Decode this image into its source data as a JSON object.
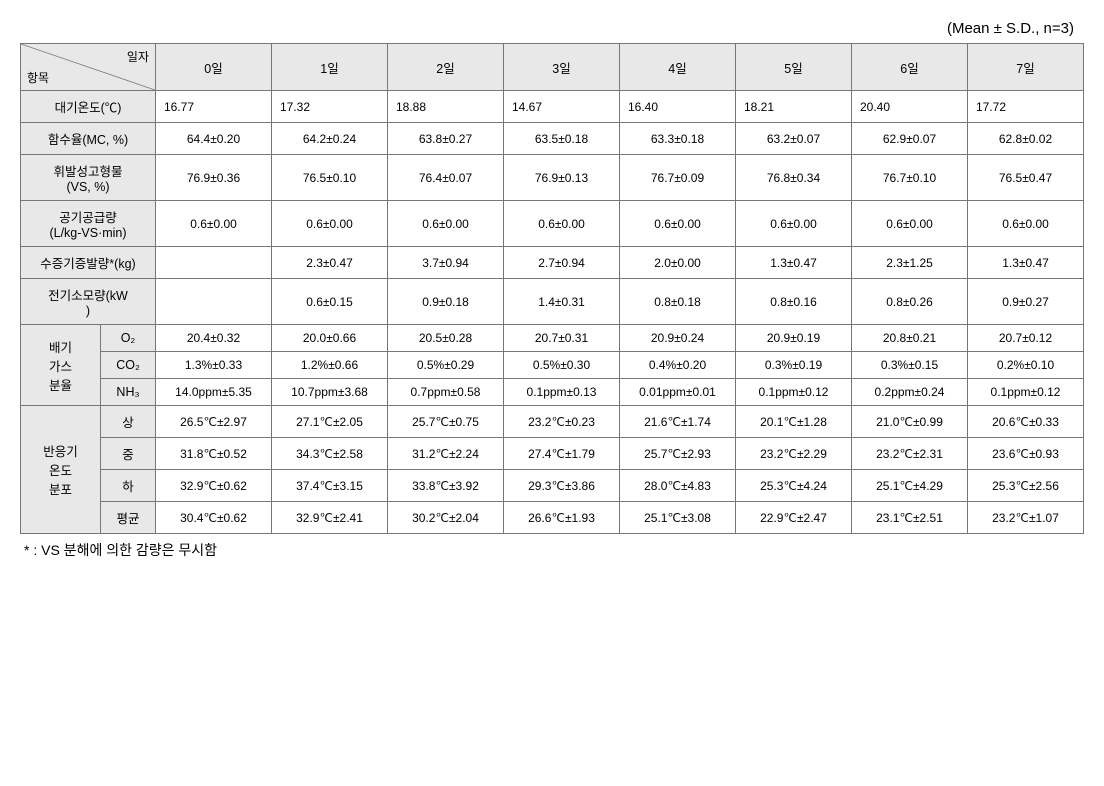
{
  "caption": "(Mean ± S.D., n=3)",
  "header": {
    "diag_top": "일자",
    "diag_bottom": "항목",
    "days": [
      "0일",
      "1일",
      "2일",
      "3일",
      "4일",
      "5일",
      "6일",
      "7일"
    ]
  },
  "rows_simple": [
    {
      "label": "대기온도(℃)",
      "vals": [
        "16.77",
        "17.32",
        "18.88",
        "14.67",
        "16.40",
        "18.21",
        "20.40",
        "17.72"
      ],
      "left": true
    },
    {
      "label": "함수율(MC, %)",
      "vals": [
        "64.4±0.20",
        "64.2±0.24",
        "63.8±0.27",
        "63.5±0.18",
        "63.3±0.18",
        "63.2±0.07",
        "62.9±0.07",
        "62.8±0.02"
      ]
    },
    {
      "label": "휘발성고형물\n(VS, %)",
      "vals": [
        "76.9±0.36",
        "76.5±0.10",
        "76.4±0.07",
        "76.9±0.13",
        "76.7±0.09",
        "76.8±0.34",
        "76.7±0.10",
        "76.5±0.47"
      ]
    },
    {
      "label": "공기공급량\n(L/kg-VS·min)",
      "vals": [
        "0.6±0.00",
        "0.6±0.00",
        "0.6±0.00",
        "0.6±0.00",
        "0.6±0.00",
        "0.6±0.00",
        "0.6±0.00",
        "0.6±0.00"
      ]
    },
    {
      "label": "수증기증발량*(kg)",
      "vals": [
        "",
        "2.3±0.47",
        "3.7±0.94",
        "2.7±0.94",
        "2.0±0.00",
        "1.3±0.47",
        "2.3±1.25",
        "1.3±0.47"
      ]
    },
    {
      "label": "전기소모량(kW\n)",
      "vals": [
        "",
        "0.6±0.15",
        "0.9±0.18",
        "1.4±0.31",
        "0.8±0.18",
        "0.8±0.16",
        "0.8±0.26",
        "0.9±0.27"
      ]
    }
  ],
  "group_gas": {
    "label": "배기\n가스\n분율",
    "rows": [
      {
        "sub": "O₂",
        "vals": [
          "20.4±0.32",
          "20.0±0.66",
          "20.5±0.28",
          "20.7±0.31",
          "20.9±0.24",
          "20.9±0.19",
          "20.8±0.21",
          "20.7±0.12"
        ]
      },
      {
        "sub": "CO₂",
        "vals": [
          "1.3%±0.33",
          "1.2%±0.66",
          "0.5%±0.29",
          "0.5%±0.30",
          "0.4%±0.20",
          "0.3%±0.19",
          "0.3%±0.15",
          "0.2%±0.10"
        ]
      },
      {
        "sub": "NH₃",
        "vals": [
          "14.0ppm±5.35",
          "10.7ppm±3.68",
          "0.7ppm±0.58",
          "0.1ppm±0.13",
          "0.01ppm±0.01",
          "0.1ppm±0.12",
          "0.2ppm±0.24",
          "0.1ppm±0.12"
        ]
      }
    ]
  },
  "group_temp": {
    "label": "반응기\n온도\n분포",
    "rows": [
      {
        "sub": "상",
        "vals": [
          "26.5℃±2.97",
          "27.1℃±2.05",
          "25.7℃±0.75",
          "23.2℃±0.23",
          "21.6℃±1.74",
          "20.1℃±1.28",
          "21.0℃±0.99",
          "20.6℃±0.33"
        ]
      },
      {
        "sub": "중",
        "vals": [
          "31.8℃±0.52",
          "34.3℃±2.58",
          "31.2℃±2.24",
          "27.4℃±1.79",
          "25.7℃±2.93",
          "23.2℃±2.29",
          "23.2℃±2.31",
          "23.6℃±0.93"
        ]
      },
      {
        "sub": "하",
        "vals": [
          "32.9℃±0.62",
          "37.4℃±3.15",
          "33.8℃±3.92",
          "29.3℃±3.86",
          "28.0℃±4.83",
          "25.3℃±4.24",
          "25.1℃±4.29",
          "25.3℃±2.56"
        ]
      },
      {
        "sub": "평균",
        "vals": [
          "30.4℃±0.62",
          "32.9℃±2.41",
          "30.2℃±2.04",
          "26.6℃±1.93",
          "25.1℃±3.08",
          "22.9℃±2.47",
          "23.1℃±2.51",
          "23.2℃±1.07"
        ]
      }
    ]
  },
  "footnote": "* : VS 분해에 의한 감량은 무시함",
  "colors": {
    "header_bg": "#e8e8e8",
    "border": "#777777",
    "text": "#000000",
    "bg": "#ffffff"
  }
}
